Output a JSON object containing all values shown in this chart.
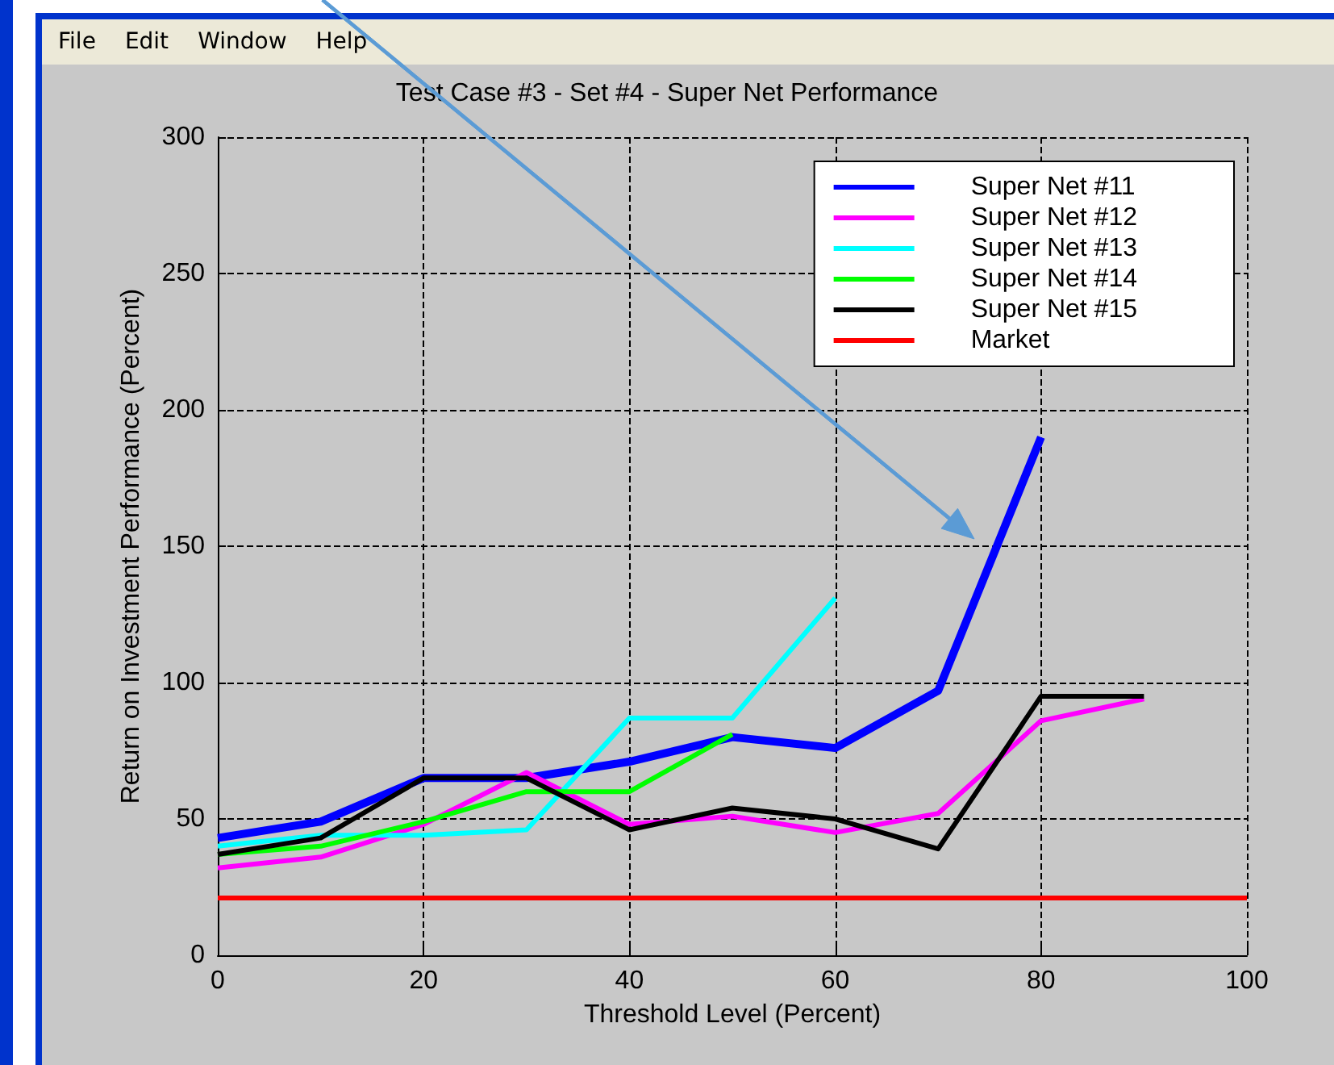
{
  "chart_data": {
    "type": "line",
    "title": "Test Case #3 - Set #4 - Super Net Performance",
    "xlabel": "Threshold Level (Percent)",
    "ylabel": "Return on Investment Performance (Percent)",
    "annotations": [
      "File",
      "Edit",
      "Window",
      "Help"
    ],
    "xlim": [
      0,
      100
    ],
    "xticks": [
      0,
      20,
      40,
      60,
      80,
      100
    ],
    "ylim": [
      0,
      300
    ],
    "yticks": [
      0,
      50,
      100,
      150,
      200,
      250,
      300
    ],
    "grid": true,
    "legend": "top right",
    "marker": "none",
    "line_style": "solid",
    "series": [
      {
        "name": "Super Net #11",
        "color": "#0000ff",
        "x": [
          0,
          10,
          20,
          30,
          40,
          50,
          60,
          70,
          80
        ],
        "values": [
          43,
          49,
          65,
          65,
          71,
          80,
          76,
          97,
          190
        ]
      },
      {
        "name": "Super Net #12",
        "color": "#ff00ff",
        "x": [
          0,
          10,
          20,
          30,
          40,
          50,
          60,
          70,
          80,
          90
        ],
        "values": [
          32,
          36,
          48,
          67,
          48,
          51,
          45,
          52,
          86,
          94
        ]
      },
      {
        "name": "Super Net #13",
        "color": "#00ffff",
        "x": [
          0,
          10,
          20,
          30,
          40,
          50,
          60
        ],
        "values": [
          40,
          44,
          44,
          46,
          87,
          87,
          131
        ]
      },
      {
        "name": "Super Net #14",
        "color": "#00ff00",
        "x": [
          0,
          10,
          20,
          30,
          40,
          50
        ],
        "values": [
          37,
          40,
          49,
          60,
          60,
          81
        ]
      },
      {
        "name": "Super Net #15",
        "color": "#000000",
        "x": [
          0,
          10,
          20,
          30,
          40,
          50,
          60,
          70,
          80,
          90
        ],
        "values": [
          37,
          43,
          65,
          65,
          46,
          54,
          50,
          39,
          95,
          95
        ]
      },
      {
        "name": "Market",
        "color": "#ff0000",
        "x": [
          0,
          100
        ],
        "values": [
          21,
          21
        ]
      }
    ]
  }
}
